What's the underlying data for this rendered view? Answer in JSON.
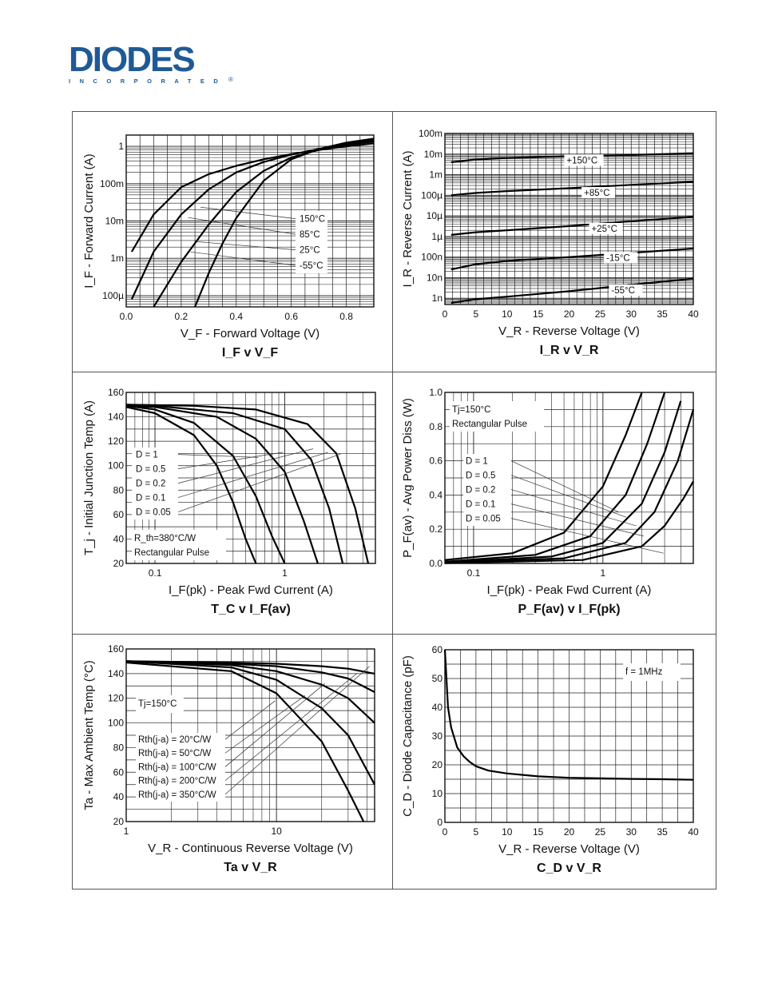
{
  "brand": {
    "name": "DIODES",
    "tagline": "INCORPORATED",
    "color": "#1f5a96"
  },
  "charts": [
    {
      "id": "c1",
      "type": "line",
      "title": "I_F v V_F",
      "xlabel": "V_F - Forward Voltage (V)",
      "ylabel": "I_F - Forward Current (A)",
      "xlim": [
        0,
        0.9
      ],
      "ylim": [
        5e-05,
        2
      ],
      "ylog": true,
      "xticks": [
        0.0,
        0.2,
        0.4,
        0.6,
        0.8
      ],
      "xtick_labels": [
        "0.0",
        "0.2",
        "0.4",
        "0.6",
        "0.8"
      ],
      "yticks": [
        0.0001,
        0.001,
        0.01,
        0.1,
        1
      ],
      "ytick_labels": [
        "100µ",
        "1m",
        "10m",
        "100m",
        "1"
      ],
      "legend": [
        "150°C",
        "85°C",
        "25°C",
        "-55°C"
      ],
      "series": [
        {
          "name": "150°C",
          "x": [
            0.02,
            0.1,
            0.2,
            0.3,
            0.4,
            0.5,
            0.6,
            0.7,
            0.8,
            0.9
          ],
          "y": [
            0.0015,
            0.015,
            0.08,
            0.18,
            0.3,
            0.45,
            0.62,
            0.8,
            1.0,
            1.2
          ]
        },
        {
          "name": "85°C",
          "x": [
            0.02,
            0.1,
            0.2,
            0.3,
            0.4,
            0.5,
            0.6,
            0.7,
            0.8,
            0.9
          ],
          "y": [
            8e-05,
            0.0015,
            0.015,
            0.07,
            0.2,
            0.38,
            0.6,
            0.85,
            1.1,
            1.35
          ]
        },
        {
          "name": "25°C",
          "x": [
            0.1,
            0.2,
            0.3,
            0.4,
            0.5,
            0.6,
            0.7,
            0.8,
            0.9
          ],
          "y": [
            5e-05,
            0.0008,
            0.008,
            0.06,
            0.22,
            0.5,
            0.8,
            1.15,
            1.45
          ]
        },
        {
          "name": "-55°C",
          "x": [
            0.25,
            0.3,
            0.35,
            0.4,
            0.5,
            0.6,
            0.7,
            0.8,
            0.9
          ],
          "y": [
            5e-05,
            0.0004,
            0.0025,
            0.012,
            0.12,
            0.45,
            0.85,
            1.25,
            1.6
          ]
        }
      ]
    },
    {
      "id": "c2",
      "type": "line",
      "title": "I_R v V_R",
      "xlabel": "V_R - Reverse Voltage (V)",
      "ylabel": "I_R - Reverse Current (A)",
      "xlim": [
        0,
        40
      ],
      "ylim": [
        5e-10,
        0.1
      ],
      "ylog": true,
      "xticks": [
        0,
        5,
        10,
        15,
        20,
        25,
        30,
        35,
        40
      ],
      "xtick_labels": [
        "0",
        "5",
        "10",
        "15",
        "20",
        "25",
        "30",
        "35",
        "40"
      ],
      "yticks": [
        1e-09,
        1e-08,
        1e-07,
        1e-06,
        1e-05,
        0.0001,
        0.001,
        0.01,
        0.1
      ],
      "ytick_labels": [
        "1n",
        "10n",
        "100n",
        "1µ",
        "10µ",
        "100µ",
        "1m",
        "10m",
        "100m"
      ],
      "legend": [
        "+150°C",
        "+85°C",
        "+25°C",
        "-15°C",
        "-55°C"
      ],
      "series": [
        {
          "name": "+150°C",
          "x": [
            1,
            5,
            10,
            20,
            30,
            40
          ],
          "y": [
            0.004,
            0.0055,
            0.0065,
            0.0078,
            0.009,
            0.011
          ]
        },
        {
          "name": "+85°C",
          "x": [
            1,
            5,
            10,
            20,
            30,
            40
          ],
          "y": [
            0.0001,
            0.00013,
            0.00016,
            0.00022,
            0.00032,
            0.00045
          ]
        },
        {
          "name": "+25°C",
          "x": [
            1,
            5,
            10,
            20,
            30,
            40
          ],
          "y": [
            1.2e-06,
            1.6e-06,
            2e-06,
            3.2e-06,
            5.5e-06,
            9e-06
          ]
        },
        {
          "name": "-15°C",
          "x": [
            1,
            5,
            10,
            20,
            30,
            40
          ],
          "y": [
            2.5e-08,
            4.5e-08,
            6.5e-08,
            1e-07,
            1.6e-07,
            2.6e-07
          ]
        },
        {
          "name": "-55°C",
          "x": [
            1,
            5,
            10,
            20,
            30,
            40
          ],
          "y": [
            6e-10,
            9e-10,
            1.2e-09,
            2.2e-09,
            4.5e-09,
            9e-09
          ]
        }
      ]
    },
    {
      "id": "c3",
      "type": "line",
      "title": "T_C v I_F(av)",
      "xlabel": "I_F(pk) - Peak Fwd Current (A)",
      "ylabel": "T_j - Initial Junction Temp (A)",
      "xlim": [
        0.06,
        5
      ],
      "xlog": true,
      "ylim": [
        20,
        160
      ],
      "xticks": [
        0.1,
        1
      ],
      "xtick_labels": [
        "0.1",
        "1"
      ],
      "yticks": [
        20,
        40,
        60,
        80,
        100,
        120,
        140,
        160
      ],
      "ytick_labels": [
        "20",
        "40",
        "60",
        "80",
        "100",
        "120",
        "140",
        "160"
      ],
      "legend": [
        "D = 1",
        "D = 0.5",
        "D = 0.2",
        "D = 0.1",
        "D = 0.05"
      ],
      "annotation": [
        "R_th=380°C/W",
        "Rectangular Pulse"
      ],
      "series": [
        {
          "name": "D = 1",
          "x": [
            0.06,
            0.1,
            0.2,
            0.3,
            0.4,
            0.5,
            0.6
          ],
          "y": [
            148,
            143,
            125,
            100,
            70,
            40,
            20
          ]
        },
        {
          "name": "D = 0.5",
          "x": [
            0.06,
            0.1,
            0.2,
            0.4,
            0.6,
            0.8,
            1.0
          ],
          "y": [
            149,
            146,
            135,
            108,
            75,
            42,
            20
          ]
        },
        {
          "name": "D = 0.2",
          "x": [
            0.06,
            0.1,
            0.3,
            0.6,
            1.0,
            1.4,
            1.8
          ],
          "y": [
            149,
            148,
            140,
            122,
            95,
            55,
            20
          ]
        },
        {
          "name": "D = 0.1",
          "x": [
            0.06,
            0.1,
            0.4,
            1.0,
            1.6,
            2.2,
            2.8
          ],
          "y": [
            150,
            149,
            143,
            130,
            105,
            65,
            20
          ]
        },
        {
          "name": "D = 0.05",
          "x": [
            0.06,
            0.2,
            0.6,
            1.5,
            2.5,
            3.5,
            4.4
          ],
          "y": [
            150,
            149,
            146,
            134,
            110,
            65,
            20
          ]
        }
      ]
    },
    {
      "id": "c4",
      "type": "line",
      "title": "P_F(av) v I_F(pk)",
      "xlabel": "I_F(pk) - Peak Fwd Current (A)",
      "ylabel": "P_F(av) - Avg Power Diss (W)",
      "xlim": [
        0.06,
        5
      ],
      "xlog": true,
      "ylim": [
        0,
        1
      ],
      "xticks": [
        0.1,
        1
      ],
      "xtick_labels": [
        "0.1",
        "1"
      ],
      "yticks": [
        0,
        0.2,
        0.4,
        0.6,
        0.8,
        1.0
      ],
      "ytick_labels": [
        "0.0",
        "0.2",
        "0.4",
        "0.6",
        "0.8",
        "1.0"
      ],
      "legend": [
        "D = 1",
        "D = 0.5",
        "D = 0.2",
        "D = 0.1",
        "D = 0.05"
      ],
      "annotation": [
        "Tj=150°C",
        "Rectangular Pulse"
      ],
      "series": [
        {
          "name": "D = 1",
          "x": [
            0.06,
            0.2,
            0.5,
            1.0,
            1.5,
            2.0
          ],
          "y": [
            0.02,
            0.06,
            0.18,
            0.45,
            0.75,
            1.0
          ]
        },
        {
          "name": "D = 0.5",
          "x": [
            0.06,
            0.3,
            0.8,
            1.5,
            2.2,
            3.0
          ],
          "y": [
            0.01,
            0.05,
            0.16,
            0.4,
            0.7,
            1.0
          ]
        },
        {
          "name": "D = 0.2",
          "x": [
            0.06,
            0.4,
            1.0,
            2.0,
            3.0,
            4.0
          ],
          "y": [
            0.005,
            0.04,
            0.12,
            0.35,
            0.65,
            0.95
          ]
        },
        {
          "name": "D = 0.1",
          "x": [
            0.06,
            0.5,
            1.5,
            2.5,
            3.8,
            5.0
          ],
          "y": [
            0.003,
            0.03,
            0.12,
            0.3,
            0.6,
            0.9
          ]
        },
        {
          "name": "D = 0.05",
          "x": [
            0.06,
            0.7,
            2.0,
            3.0,
            4.2,
            5.0
          ],
          "y": [
            0.002,
            0.02,
            0.1,
            0.22,
            0.38,
            0.48
          ]
        }
      ]
    },
    {
      "id": "c5",
      "type": "line",
      "title": "Ta v V_R",
      "xlabel": "V_R - Continuous Reverse Voltage (V)",
      "ylabel": "Ta - Max Ambient Temp (°C)",
      "xlim": [
        1,
        45
      ],
      "xlog": true,
      "ylim": [
        20,
        160
      ],
      "xticks": [
        1,
        10
      ],
      "xtick_labels": [
        "1",
        "10"
      ],
      "yticks": [
        20,
        40,
        60,
        80,
        100,
        120,
        140,
        160
      ],
      "ytick_labels": [
        "20",
        "40",
        "60",
        "80",
        "100",
        "120",
        "140",
        "160"
      ],
      "legend": [
        "Rth(j-a) = 20°C/W",
        "Rth(j-a) = 50°C/W",
        "Rth(j-a) = 100°C/W",
        "Rth(j-a) = 200°C/W",
        "Rth(j-a) = 350°C/W"
      ],
      "annotation": [
        "Tj=150°C"
      ],
      "series": [
        {
          "name": "Rth(j-a) = 20°C/W",
          "x": [
            1,
            5,
            10,
            20,
            30,
            45
          ],
          "y": [
            150,
            149,
            148,
            146,
            144,
            140
          ]
        },
        {
          "name": "Rth(j-a) = 50°C/W",
          "x": [
            1,
            5,
            10,
            20,
            30,
            45
          ],
          "y": [
            150,
            148,
            146,
            141,
            136,
            125
          ]
        },
        {
          "name": "Rth(j-a) = 100°C/W",
          "x": [
            1,
            5,
            10,
            20,
            30,
            45
          ],
          "y": [
            150,
            147,
            142,
            131,
            120,
            100
          ]
        },
        {
          "name": "Rth(j-a) = 200°C/W",
          "x": [
            1,
            5,
            10,
            20,
            30,
            45
          ],
          "y": [
            150,
            145,
            135,
            112,
            90,
            50
          ]
        },
        {
          "name": "Rth(j-a) = 350°C/W",
          "x": [
            1,
            5,
            10,
            20,
            30,
            38
          ],
          "y": [
            149,
            142,
            124,
            85,
            45,
            20
          ]
        }
      ]
    },
    {
      "id": "c6",
      "type": "line",
      "title": "C_D v V_R",
      "xlabel": "V_R - Reverse Voltage (V)",
      "ylabel": "C_D - Diode Capacitance (pF)",
      "xlim": [
        0,
        40
      ],
      "ylim": [
        0,
        60
      ],
      "xticks": [
        0,
        5,
        10,
        15,
        20,
        25,
        30,
        35,
        40
      ],
      "xtick_labels": [
        "0",
        "5",
        "10",
        "15",
        "20",
        "25",
        "30",
        "35",
        "40"
      ],
      "yticks": [
        0,
        10,
        20,
        30,
        40,
        50,
        60
      ],
      "ytick_labels": [
        "0",
        "10",
        "20",
        "30",
        "40",
        "50",
        "60"
      ],
      "annotation": [
        "f = 1MHz"
      ],
      "series": [
        {
          "name": "",
          "x": [
            0,
            0.5,
            1,
            2,
            3,
            4,
            5,
            7,
            10,
            15,
            20,
            25,
            30,
            35,
            40
          ],
          "y": [
            60,
            40,
            33,
            26,
            23,
            21,
            19.5,
            18,
            17,
            16,
            15.5,
            15.3,
            15.1,
            15,
            14.8
          ]
        }
      ]
    }
  ]
}
